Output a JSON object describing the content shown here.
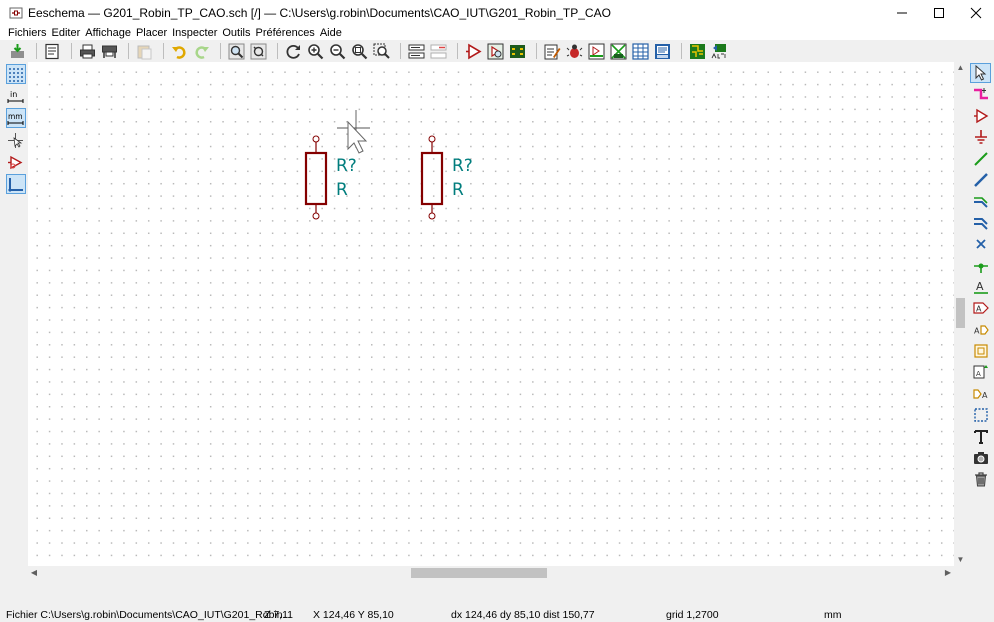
{
  "window": {
    "title": "Eeschema — G201_Robin_TP_CAO.sch [/] — C:\\Users\\g.robin\\Documents\\CAO_IUT\\G201_Robin_TP_CAO"
  },
  "menu": [
    "Fichiers",
    "Editer",
    "Affichage",
    "Placer",
    "Inspecter",
    "Outils",
    "Préférences",
    "Aide"
  ],
  "toolbar_icons": [
    "save-icon",
    "page-settings-icon",
    "print-icon",
    "plot-icon",
    "paste-icon",
    "undo-icon",
    "redo-icon",
    "find-icon",
    "find-replace-icon",
    "redraw-icon",
    "zoom-in-icon",
    "zoom-out-icon",
    "zoom-fit-icon",
    "zoom-selection-icon",
    "hierarchy-navigator-icon",
    "leave-sheet-icon",
    "symbol-editor-icon",
    "symbol-browser-icon",
    "footprint-editor-icon",
    "annotate-icon",
    "erc-icon",
    "netlist-icon",
    "assign-footprints-icon",
    "bom-icon",
    "fields-editor-icon",
    "pcbnew-icon",
    "back-annotate-icon"
  ],
  "components": [
    {
      "reference": "R?",
      "value": "R"
    },
    {
      "reference": "R?",
      "value": "R"
    }
  ],
  "colors": {
    "component_body": "#840000",
    "text": "#007d7d",
    "pin_circle": "#840000",
    "selection_highlight": "#cce4f7"
  },
  "status": {
    "file": "Fichier C:\\Users\\g.robin\\Documents\\CAO_IUT\\G201_Robin...",
    "zoom": "Z 7,11",
    "xy": "X 124,46  Y 85,10",
    "delta": "dx 124,46  dy 85,10  dist 150,77",
    "grid": "grid 1,2700",
    "units": "mm"
  }
}
